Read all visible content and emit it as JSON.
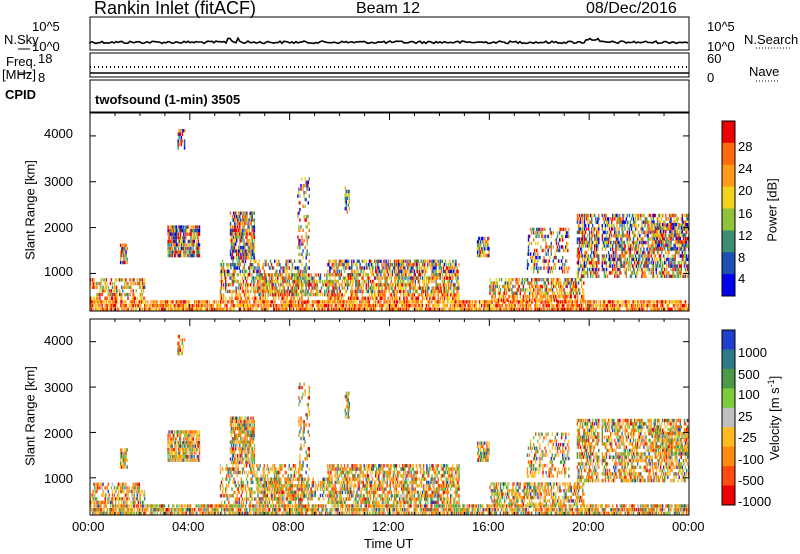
{
  "header": {
    "site": "Rankin Inlet (fitACF)",
    "beam": "Beam 12",
    "date": "08/Dec/2016"
  },
  "top_panel": {
    "nsky_label": "N.Sky",
    "nsky_ticks": [
      "10^5",
      "10^0"
    ],
    "nsearch_label": "N.Search",
    "nsearch_ticks": [
      "10^5",
      "10^0"
    ],
    "freq_label": "Freq.",
    "freq_unit": "[MHz]",
    "freq_ticks": [
      "18",
      "8"
    ],
    "nave_label": "Nave",
    "nave_ticks": [
      "60",
      "0"
    ],
    "cpid_label": "CPID",
    "cpid_text": "twofsound (1-min) 3505"
  },
  "chart_data": [
    {
      "type": "heatmap",
      "name": "power",
      "ylabel": "Slant Range [km]",
      "yticks": [
        "1000",
        "2000",
        "3000",
        "4000"
      ],
      "xticks": [
        "00:00",
        "04:00",
        "08:00",
        "12:00",
        "16:00",
        "20:00",
        "00:00"
      ],
      "colorbar_label": "Power [dB]",
      "colorbar_ticks": [
        "4",
        "8",
        "12",
        "16",
        "20",
        "24",
        "28"
      ],
      "colors": [
        "#0000ee",
        "#1e4fb4",
        "#3e8e74",
        "#8fc43a",
        "#f2d21a",
        "#ff9b16",
        "#ff6a10",
        "#ee0000"
      ],
      "ylim": [
        180,
        4500
      ],
      "xlim_hours": [
        0,
        24
      ]
    },
    {
      "type": "heatmap",
      "name": "velocity",
      "ylabel": "Slant Range [km]",
      "yticks": [
        "1000",
        "2000",
        "3000",
        "4000"
      ],
      "xticks": [
        "00:00",
        "04:00",
        "08:00",
        "12:00",
        "16:00",
        "20:00",
        "00:00"
      ],
      "xlabel": "Time UT",
      "colorbar_label": "Velocity [m s",
      "colorbar_sup": "-1",
      "colorbar_ticks": [
        "1000",
        "500",
        "100",
        "25",
        "-25",
        "-100",
        "-500",
        "-1000"
      ],
      "colors": [
        "#1f3fcc",
        "#2e7a8a",
        "#4c9a47",
        "#7ccc3c",
        "#c0c0c0",
        "#ffbb20",
        "#ff8a10",
        "#ff4a10",
        "#ee0000"
      ],
      "ylim": [
        180,
        4500
      ],
      "xlim_hours": [
        0,
        24
      ]
    }
  ]
}
